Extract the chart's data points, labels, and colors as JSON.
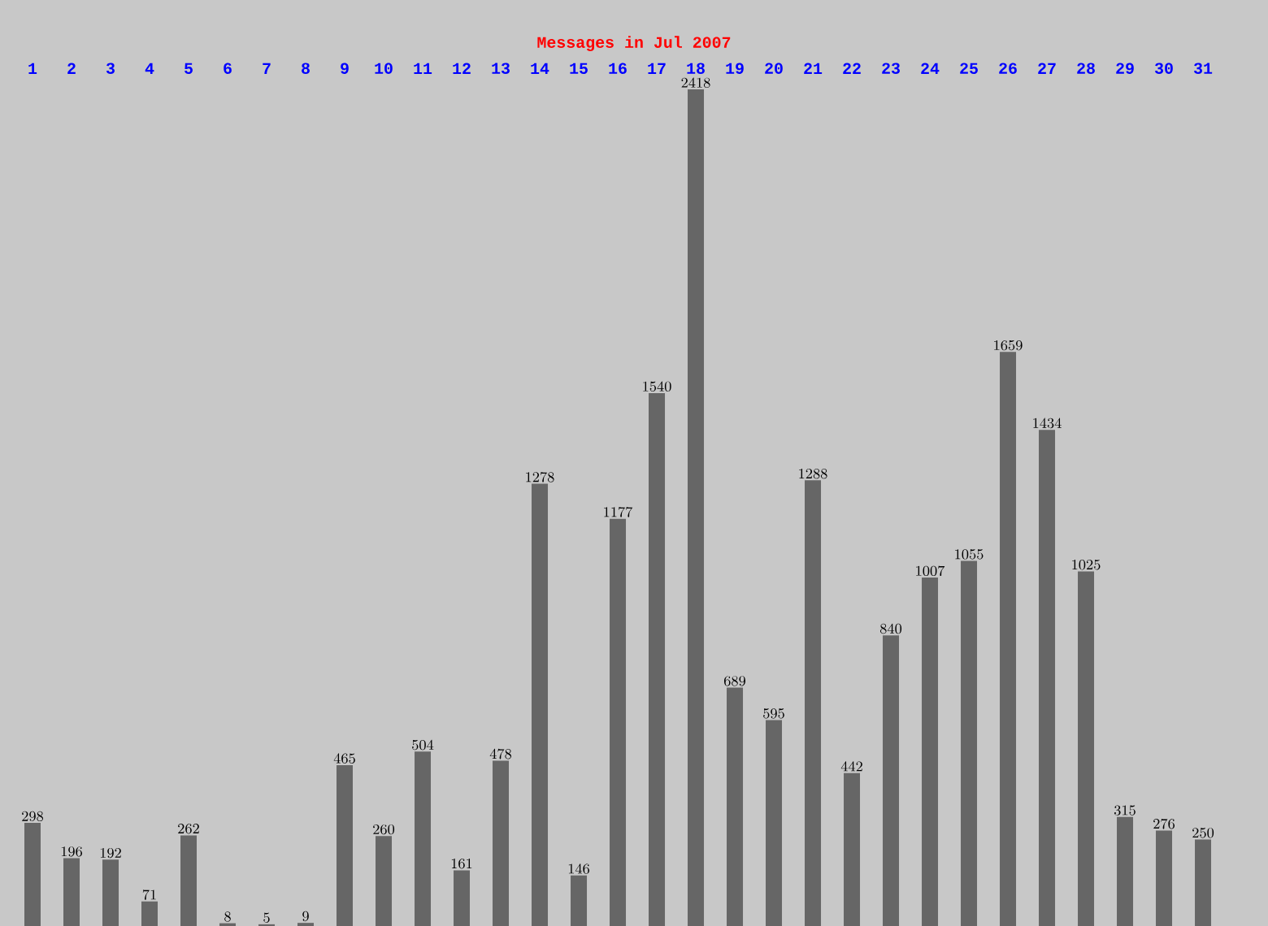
{
  "chart_data": {
    "type": "bar",
    "title": "Messages in Jul 2007",
    "categories": [
      "1",
      "2",
      "3",
      "4",
      "5",
      "6",
      "7",
      "8",
      "9",
      "10",
      "11",
      "12",
      "13",
      "14",
      "15",
      "16",
      "17",
      "18",
      "19",
      "20",
      "21",
      "22",
      "23",
      "24",
      "25",
      "26",
      "27",
      "28",
      "29",
      "30",
      "31"
    ],
    "values": [
      298,
      196,
      192,
      71,
      262,
      8,
      5,
      9,
      465,
      260,
      504,
      161,
      478,
      1278,
      146,
      1177,
      1540,
      2418,
      689,
      595,
      1288,
      442,
      840,
      1007,
      1055,
      1659,
      1434,
      1025,
      315,
      276,
      250
    ],
    "color": "#666666",
    "data_labels": true
  }
}
